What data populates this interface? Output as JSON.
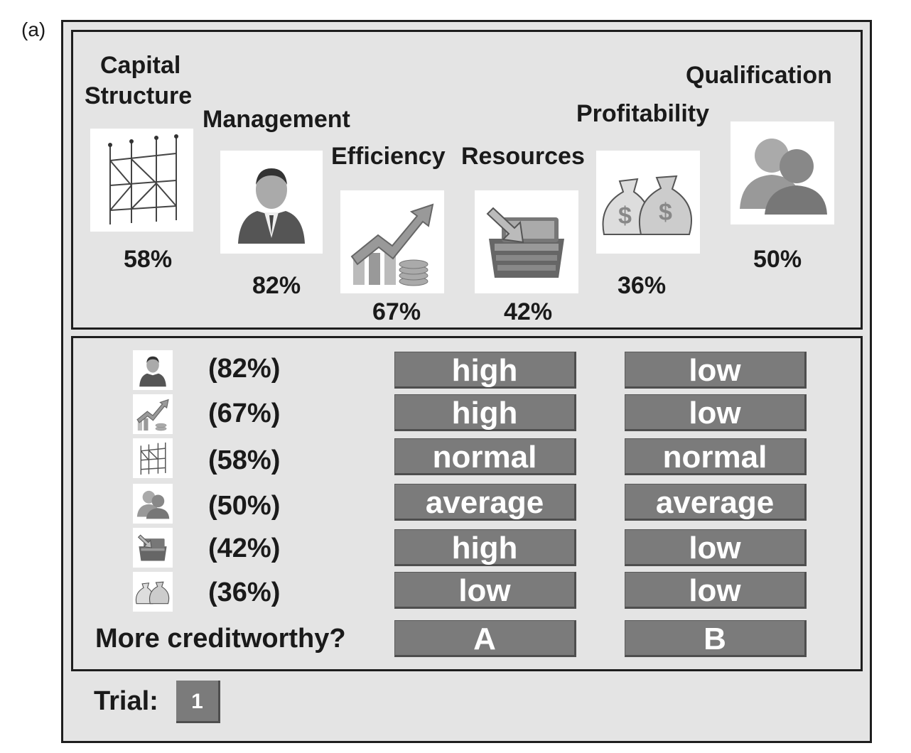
{
  "panel_label": "(a)",
  "cues": [
    {
      "key": "capital",
      "name_line1": "Capital",
      "name_line2": "Structure",
      "percent": "58%",
      "icon": "scaffold-icon"
    },
    {
      "key": "management",
      "name": "Management",
      "percent": "82%",
      "icon": "manager-icon"
    },
    {
      "key": "efficiency",
      "name": "Efficiency",
      "percent": "67%",
      "icon": "growth-chart-icon"
    },
    {
      "key": "resources",
      "name": "Resources",
      "percent": "42%",
      "icon": "inbox-tray-icon"
    },
    {
      "key": "profitability",
      "name": "Profitability",
      "percent": "36%",
      "icon": "money-bags-icon"
    },
    {
      "key": "qualification",
      "name": "Qualification",
      "percent": "50%",
      "icon": "people-icon"
    }
  ],
  "comparison": {
    "rows": [
      {
        "icon": "manager-icon",
        "percent": "(82%)",
        "a": "high",
        "b": "low"
      },
      {
        "icon": "growth-chart-icon",
        "percent": "(67%)",
        "a": "high",
        "b": "low"
      },
      {
        "icon": "scaffold-icon",
        "percent": "(58%)",
        "a": "normal",
        "b": "normal"
      },
      {
        "icon": "people-icon",
        "percent": "(50%)",
        "a": "average",
        "b": "average"
      },
      {
        "icon": "inbox-tray-icon",
        "percent": "(42%)",
        "a": "high",
        "b": "low"
      },
      {
        "icon": "money-bags-icon",
        "percent": "(36%)",
        "a": "low",
        "b": "low"
      }
    ],
    "question": "More creditworthy?",
    "choice_a": "A",
    "choice_b": "B"
  },
  "trial": {
    "label": "Trial:",
    "value": "1"
  },
  "colors": {
    "frame_bg": "#e4e4e4",
    "button_bg": "#7b7b7b",
    "button_text": "#ffffff",
    "border": "#1e1e1e"
  }
}
